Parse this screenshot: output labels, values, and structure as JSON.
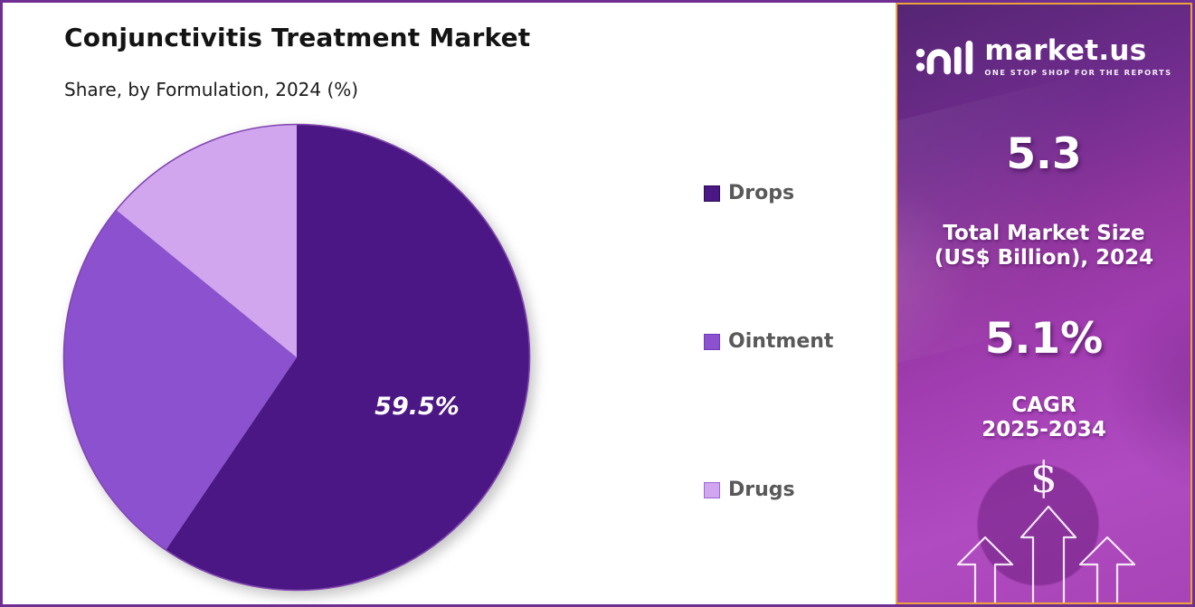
{
  "chart_data": {
    "type": "pie",
    "title": "Conjunctivitis Treatment Market",
    "subtitle": "Share, by Formulation, 2024 (%)",
    "categories": [
      "Drops",
      "Ointment",
      "Drugs"
    ],
    "values": [
      59.5,
      26.4,
      14.1
    ],
    "data_label": "59.5%",
    "data_label_series": "Drops",
    "colors": [
      "#4B1784",
      "#8B51CE",
      "#D1A6EF"
    ],
    "rim_color": "#8246B0",
    "start_angle_deg": 0,
    "direction": "clockwise",
    "legend_position": "right"
  },
  "legend": {
    "items": [
      {
        "label": "Drops",
        "color": "#4B1784",
        "border": "#2E0D55"
      },
      {
        "label": "Ointment",
        "color": "#8B51CE",
        "border": "#7038BE"
      },
      {
        "label": "Drugs",
        "color": "#D1A6EF",
        "border": "#9A64D6"
      }
    ]
  },
  "sidebar": {
    "brand": {
      "name": "market.us",
      "tagline": "ONE STOP SHOP FOR THE REPORTS"
    },
    "stats": [
      {
        "value": "5.3",
        "label_line1": "Total Market Size",
        "label_line2": "(US$ Billion), 2024"
      },
      {
        "value": "5.1%",
        "label_line1": "CAGR",
        "label_line2": "2025-2034"
      }
    ],
    "dollar_symbol": "$"
  }
}
